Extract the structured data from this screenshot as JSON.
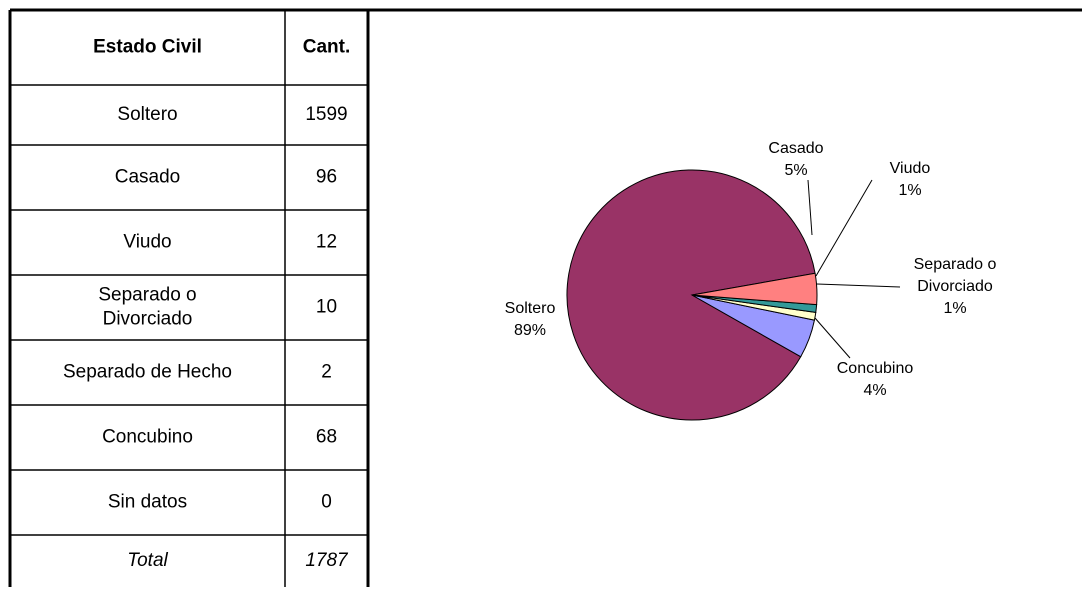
{
  "table": {
    "header": [
      "Estado Civil",
      "Cant."
    ],
    "rows": [
      [
        "Soltero",
        "1599"
      ],
      [
        "Casado",
        "96"
      ],
      [
        "Viudo",
        "12"
      ],
      [
        "Separado o Divorciado",
        "10"
      ],
      [
        "Separado de Hecho",
        "2"
      ],
      [
        "Concubino",
        "68"
      ],
      [
        "Sin datos",
        "0"
      ]
    ],
    "total": [
      "Total",
      "1787"
    ]
  },
  "chart_data": {
    "type": "pie",
    "categories": [
      "Soltero",
      "Casado",
      "Viudo",
      "Separado o Divorciado",
      "Concubino"
    ],
    "values": [
      89,
      5,
      1,
      1,
      4
    ],
    "value_labels": [
      "89%",
      "5%",
      "1%",
      "1%",
      "4%"
    ],
    "colors": [
      "#993366",
      "#9999ff",
      "#ffffcc",
      "#339999",
      "#ff8080"
    ]
  }
}
